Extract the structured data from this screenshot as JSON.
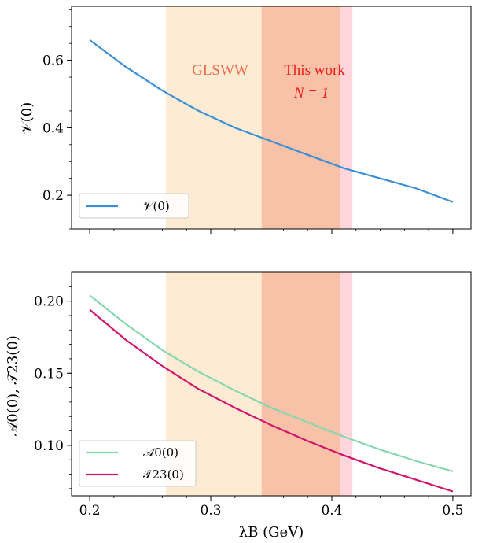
{
  "colors": {
    "band_glsww": "#fdebd3",
    "band_this_work": "#f9c2a8",
    "band_this_work_edge": "#ffd6dc",
    "V": "#3a8fd6",
    "A0": "#86d7ae",
    "T23": "#d0176f",
    "glsww_text": "#ef6d4b",
    "this_work_text": "#ee1c1c"
  },
  "chart_data": [
    {
      "type": "line",
      "ylabel": "𝒱(0)",
      "xlim": [
        0.185,
        0.515
      ],
      "ylim": [
        0.1,
        0.76
      ],
      "yticks": [
        0.2,
        0.4,
        0.6
      ],
      "ytick_labels": [
        "0.2",
        "0.4",
        "0.6"
      ],
      "bands": [
        {
          "name": "GLSWW",
          "x0": 0.263,
          "x1": 0.342
        },
        {
          "name": "This work",
          "x0": 0.342,
          "x1": 0.407
        },
        {
          "name": "This work edge",
          "x0": 0.407,
          "x1": 0.417
        }
      ],
      "annotations": {
        "glsww": "GLSWW",
        "this_work": "This work",
        "n_label": "N = 1"
      },
      "legend_position": "lower-left",
      "series": [
        {
          "name": "𝒱(0)",
          "x": [
            0.2,
            0.23,
            0.26,
            0.29,
            0.32,
            0.35,
            0.38,
            0.41,
            0.44,
            0.47,
            0.5
          ],
          "values": [
            0.66,
            0.58,
            0.51,
            0.45,
            0.4,
            0.36,
            0.32,
            0.28,
            0.25,
            0.22,
            0.18
          ]
        }
      ]
    },
    {
      "type": "line",
      "xlabel": "λB (GeV)",
      "ylabel": "𝒜0(0), 𝒯23(0)",
      "xlim": [
        0.185,
        0.515
      ],
      "ylim": [
        0.065,
        0.22
      ],
      "xticks": [
        0.2,
        0.3,
        0.4,
        0.5
      ],
      "xtick_labels": [
        "0.2",
        "0.3",
        "0.4",
        "0.5"
      ],
      "yticks": [
        0.1,
        0.15,
        0.2
      ],
      "ytick_labels": [
        "0.10",
        "0.15",
        "0.20"
      ],
      "bands": [
        {
          "name": "GLSWW",
          "x0": 0.263,
          "x1": 0.342
        },
        {
          "name": "This work",
          "x0": 0.342,
          "x1": 0.407
        },
        {
          "name": "This work edge",
          "x0": 0.407,
          "x1": 0.417
        }
      ],
      "legend_position": "lower-left",
      "series": [
        {
          "name": "𝒜0(0)",
          "x": [
            0.2,
            0.23,
            0.26,
            0.29,
            0.32,
            0.35,
            0.38,
            0.41,
            0.44,
            0.47,
            0.5
          ],
          "values": [
            0.204,
            0.184,
            0.166,
            0.151,
            0.138,
            0.126,
            0.116,
            0.106,
            0.097,
            0.089,
            0.082
          ]
        },
        {
          "name": "𝒯23(0)",
          "x": [
            0.2,
            0.23,
            0.26,
            0.29,
            0.32,
            0.35,
            0.38,
            0.41,
            0.44,
            0.47,
            0.5
          ],
          "values": [
            0.194,
            0.173,
            0.155,
            0.139,
            0.126,
            0.114,
            0.103,
            0.093,
            0.084,
            0.076,
            0.068
          ]
        }
      ]
    }
  ]
}
